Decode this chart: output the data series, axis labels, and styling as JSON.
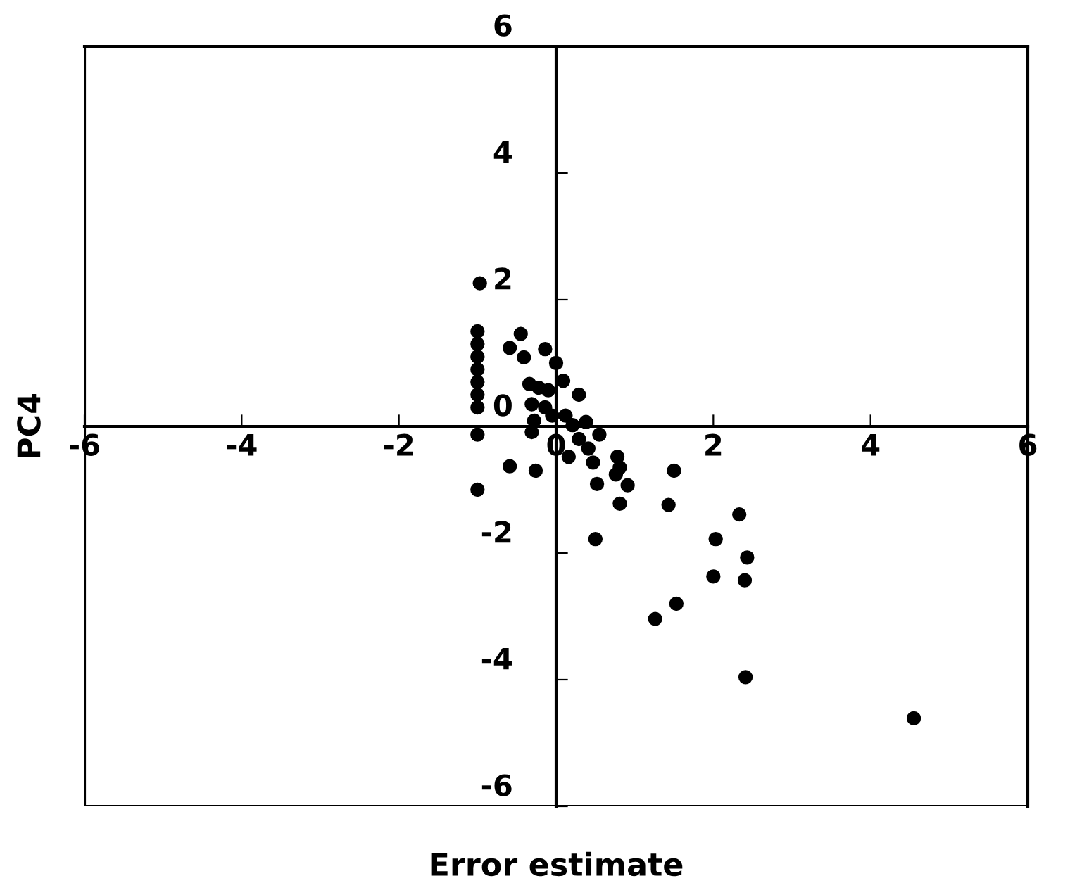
{
  "chart_data": {
    "type": "scatter",
    "xlabel": "Error estimate",
    "ylabel": "PC4",
    "xlim": [
      -6,
      6
    ],
    "ylim": [
      -6,
      6
    ],
    "xticks": [
      -6,
      -4,
      -2,
      0,
      2,
      4,
      6
    ],
    "yticks": [
      -6,
      -4,
      -2,
      0,
      2,
      4,
      6
    ],
    "grid": false,
    "marker": "circle",
    "series": [
      {
        "color": "#000000",
        "x": [
          -0.97,
          -1,
          -1,
          -1,
          -1,
          -1,
          -1,
          -1,
          -1,
          -1,
          -0.45,
          -0.59,
          -0.41,
          -0.14,
          0,
          0.09,
          0.29,
          -0.34,
          -0.22,
          -0.31,
          -0.14,
          -0.1,
          -0.28,
          -0.31,
          -0.05,
          0.12,
          0.21,
          0.38,
          0.55,
          0.29,
          0.41,
          0.16,
          0.47,
          -0.59,
          -0.26,
          0.52,
          0.5,
          0.78,
          0.81,
          0.76,
          0.91,
          0.81,
          1.5,
          1.43,
          2.33,
          2.03,
          2.43,
          2.0,
          2.4,
          1.53,
          1.26,
          2.41,
          4.55
        ],
        "values": [
          2.26,
          1.5,
          1.3,
          1.1,
          0.9,
          0.7,
          0.5,
          0.3,
          -0.13,
          -1.0,
          1.46,
          1.24,
          1.09,
          1.22,
          1.0,
          0.72,
          0.5,
          0.67,
          0.61,
          0.35,
          0.3,
          0.57,
          0.09,
          -0.09,
          0.17,
          0.17,
          0.02,
          0.07,
          -0.13,
          -0.2,
          -0.35,
          -0.48,
          -0.57,
          -0.63,
          -0.7,
          -0.91,
          -1.78,
          -0.48,
          -0.65,
          -0.76,
          -0.93,
          -1.22,
          -0.7,
          -1.24,
          -1.39,
          -1.78,
          -2.07,
          -2.37,
          -2.43,
          -2.8,
          -3.04,
          -3.96,
          -4.61
        ]
      }
    ]
  }
}
